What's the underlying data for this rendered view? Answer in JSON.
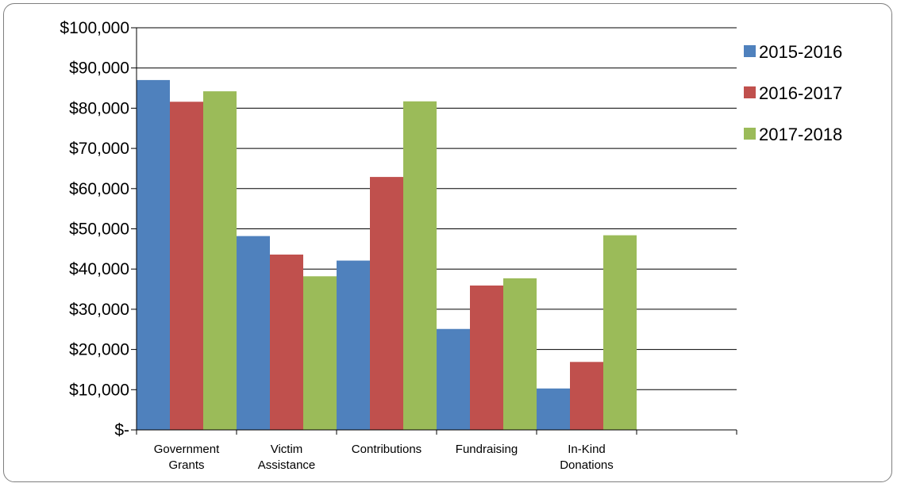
{
  "chart_data": {
    "type": "bar",
    "categories": [
      [
        "Government",
        "Grants"
      ],
      [
        "Victim",
        "Assistance"
      ],
      [
        "Contributions"
      ],
      [
        "Fundraising"
      ],
      [
        "In-Kind",
        "Donations"
      ],
      [
        ""
      ]
    ],
    "series": [
      {
        "name": "2015-2016",
        "color": "#4f81bd",
        "values": [
          87000,
          48200,
          42100,
          25100,
          10300,
          null
        ]
      },
      {
        "name": "2016-2017",
        "color": "#c0504d",
        "values": [
          81600,
          43600,
          62900,
          35900,
          16900,
          null
        ]
      },
      {
        "name": "2017-2018",
        "color": "#9bbb59",
        "values": [
          84200,
          38200,
          81700,
          37700,
          48400,
          null
        ]
      }
    ],
    "yticks": [
      "$-",
      "$10,000",
      "$20,000",
      "$30,000",
      "$40,000",
      "$50,000",
      "$60,000",
      "$70,000",
      "$80,000",
      "$90,000",
      "$100,000"
    ],
    "ylim": [
      0,
      100000
    ],
    "grid": true,
    "legend": "right"
  }
}
